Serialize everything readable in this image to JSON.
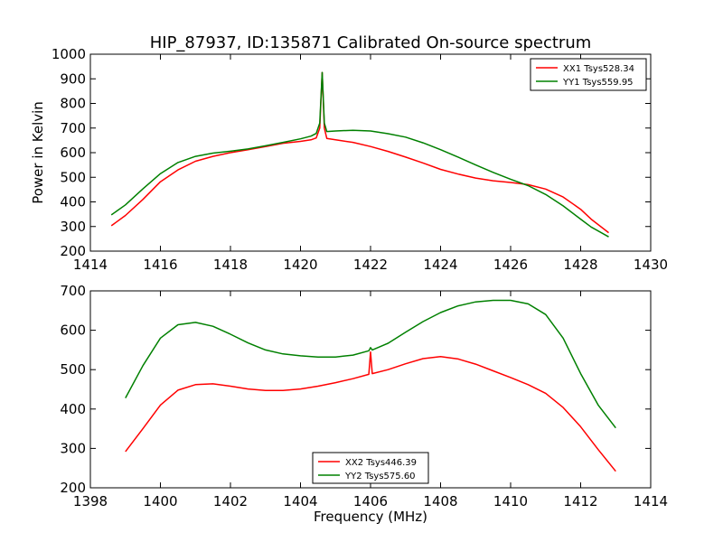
{
  "figure": {
    "title": "HIP_87937, ID:135871 Calibrated On-source spectrum",
    "ylabel": "Power in Kelvin",
    "xlabel": "Frequency (MHz)"
  },
  "chart_data": [
    {
      "type": "line",
      "title": "HIP_87937, ID:135871 Calibrated On-source spectrum",
      "ylabel": "Power in Kelvin",
      "xlabel": "",
      "xlim": [
        1414,
        1430
      ],
      "ylim": [
        200,
        1000
      ],
      "xticks": [
        1414,
        1416,
        1418,
        1420,
        1422,
        1424,
        1426,
        1428,
        1430
      ],
      "yticks": [
        200,
        300,
        400,
        500,
        600,
        700,
        800,
        900,
        1000
      ],
      "legend_position": "top-right",
      "grid": false,
      "series": [
        {
          "name": "XX1 Tsys528.34",
          "color": "#ff0000",
          "points": [
            [
              1414.6,
              303
            ],
            [
              1415.0,
              345
            ],
            [
              1415.5,
              410
            ],
            [
              1416.0,
              482
            ],
            [
              1416.5,
              530
            ],
            [
              1417.0,
              565
            ],
            [
              1417.5,
              585
            ],
            [
              1418.0,
              600
            ],
            [
              1418.5,
              612
            ],
            [
              1419.0,
              625
            ],
            [
              1419.5,
              638
            ],
            [
              1420.0,
              646
            ],
            [
              1420.3,
              652
            ],
            [
              1420.45,
              660
            ],
            [
              1420.55,
              700
            ],
            [
              1420.62,
              926
            ],
            [
              1420.68,
              700
            ],
            [
              1420.75,
              658
            ],
            [
              1421.0,
              652
            ],
            [
              1421.5,
              642
            ],
            [
              1422.0,
              625
            ],
            [
              1422.5,
              605
            ],
            [
              1423.0,
              582
            ],
            [
              1423.5,
              558
            ],
            [
              1424.0,
              532
            ],
            [
              1424.5,
              513
            ],
            [
              1425.0,
              497
            ],
            [
              1425.5,
              486
            ],
            [
              1426.0,
              479
            ],
            [
              1426.5,
              470
            ],
            [
              1427.0,
              452
            ],
            [
              1427.5,
              420
            ],
            [
              1428.0,
              370
            ],
            [
              1428.3,
              330
            ],
            [
              1428.8,
              275
            ]
          ]
        },
        {
          "name": "YY1 Tsys559.95",
          "color": "#008000",
          "points": [
            [
              1414.6,
              347
            ],
            [
              1415.0,
              388
            ],
            [
              1415.5,
              453
            ],
            [
              1416.0,
              515
            ],
            [
              1416.5,
              560
            ],
            [
              1417.0,
              585
            ],
            [
              1417.5,
              598
            ],
            [
              1418.0,
              606
            ],
            [
              1418.5,
              615
            ],
            [
              1419.0,
              628
            ],
            [
              1419.5,
              642
            ],
            [
              1420.0,
              656
            ],
            [
              1420.3,
              667
            ],
            [
              1420.45,
              678
            ],
            [
              1420.55,
              720
            ],
            [
              1420.62,
              926
            ],
            [
              1420.68,
              720
            ],
            [
              1420.75,
              686
            ],
            [
              1421.0,
              688
            ],
            [
              1421.5,
              691
            ],
            [
              1422.0,
              688
            ],
            [
              1422.5,
              677
            ],
            [
              1423.0,
              663
            ],
            [
              1423.5,
              640
            ],
            [
              1424.0,
              612
            ],
            [
              1424.5,
              582
            ],
            [
              1425.0,
              550
            ],
            [
              1425.5,
              520
            ],
            [
              1426.0,
              492
            ],
            [
              1426.5,
              466
            ],
            [
              1427.0,
              430
            ],
            [
              1427.5,
              384
            ],
            [
              1428.0,
              330
            ],
            [
              1428.3,
              298
            ],
            [
              1428.8,
              258
            ]
          ]
        }
      ]
    },
    {
      "type": "line",
      "title": "",
      "ylabel": "",
      "xlabel": "Frequency (MHz)",
      "xlim": [
        1398,
        1414
      ],
      "ylim": [
        200,
        700
      ],
      "xticks": [
        1398,
        1400,
        1402,
        1404,
        1406,
        1408,
        1410,
        1412,
        1414
      ],
      "yticks": [
        200,
        300,
        400,
        500,
        600,
        700
      ],
      "legend_position": "lower-center",
      "grid": false,
      "series": [
        {
          "name": "XX2 Tsys446.39",
          "color": "#ff0000",
          "points": [
            [
              1399.0,
              292
            ],
            [
              1399.5,
              350
            ],
            [
              1400.0,
              410
            ],
            [
              1400.5,
              448
            ],
            [
              1401.0,
              462
            ],
            [
              1401.5,
              464
            ],
            [
              1402.0,
              458
            ],
            [
              1402.5,
              451
            ],
            [
              1403.0,
              447
            ],
            [
              1403.5,
              447
            ],
            [
              1404.0,
              451
            ],
            [
              1404.5,
              458
            ],
            [
              1405.0,
              467
            ],
            [
              1405.5,
              477
            ],
            [
              1405.95,
              488
            ],
            [
              1406.0,
              545
            ],
            [
              1406.05,
              490
            ],
            [
              1406.5,
              500
            ],
            [
              1407.0,
              515
            ],
            [
              1407.5,
              528
            ],
            [
              1408.0,
              533
            ],
            [
              1408.5,
              527
            ],
            [
              1409.0,
              514
            ],
            [
              1409.5,
              497
            ],
            [
              1410.0,
              480
            ],
            [
              1410.5,
              462
            ],
            [
              1411.0,
              440
            ],
            [
              1411.5,
              404
            ],
            [
              1412.0,
              355
            ],
            [
              1412.5,
              297
            ],
            [
              1413.0,
              242
            ]
          ]
        },
        {
          "name": "YY2 Tsys575.60",
          "color": "#008000",
          "points": [
            [
              1399.0,
              428
            ],
            [
              1399.5,
              510
            ],
            [
              1400.0,
              580
            ],
            [
              1400.5,
              614
            ],
            [
              1401.0,
              620
            ],
            [
              1401.5,
              610
            ],
            [
              1402.0,
              590
            ],
            [
              1402.5,
              568
            ],
            [
              1403.0,
              550
            ],
            [
              1403.5,
              540
            ],
            [
              1404.0,
              535
            ],
            [
              1404.5,
              532
            ],
            [
              1405.0,
              532
            ],
            [
              1405.5,
              537
            ],
            [
              1405.95,
              548
            ],
            [
              1406.0,
              556
            ],
            [
              1406.05,
              550
            ],
            [
              1406.5,
              567
            ],
            [
              1407.0,
              595
            ],
            [
              1407.5,
              622
            ],
            [
              1408.0,
              645
            ],
            [
              1408.5,
              662
            ],
            [
              1409.0,
              672
            ],
            [
              1409.5,
              676
            ],
            [
              1410.0,
              676
            ],
            [
              1410.5,
              667
            ],
            [
              1411.0,
              640
            ],
            [
              1411.5,
              580
            ],
            [
              1412.0,
              490
            ],
            [
              1412.5,
              410
            ],
            [
              1413.0,
              352
            ]
          ]
        }
      ]
    }
  ]
}
